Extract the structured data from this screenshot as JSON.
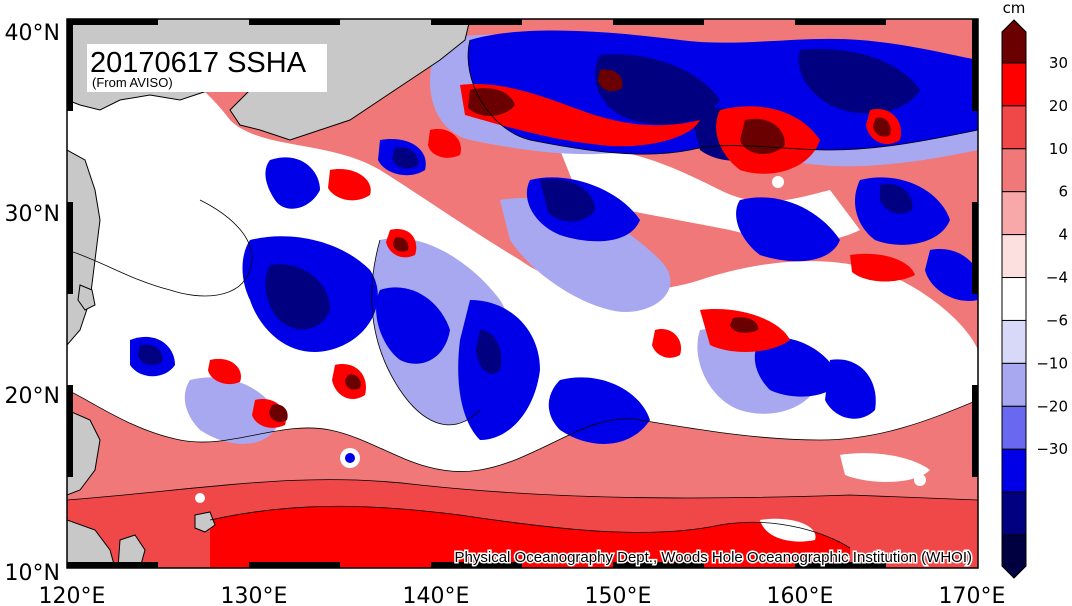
{
  "map": {
    "title": "20170617 SSHA",
    "subtitle": "(From AVISO)",
    "credit": "Physical Oceanography Dept., Woods Hole Oceanographic Institution (WHOI)",
    "lon_range": [
      120,
      170
    ],
    "lat_range": [
      10,
      40
    ],
    "lon_labels": [
      "120°E",
      "130°E",
      "140°E",
      "150°E",
      "160°E",
      "170°E"
    ],
    "lat_labels": [
      "10°N",
      "20°N",
      "30°N",
      "40°N"
    ],
    "land_color": "#c8c8c8"
  },
  "colorbar": {
    "unit": "cm",
    "tick_labels": [
      "30",
      "20",
      "10",
      "6",
      "4",
      "−4",
      "−6",
      "−10",
      "−20",
      "−30"
    ],
    "colors_top_to_bottom": [
      "#6b0000",
      "#ff0000",
      "#f04848",
      "#f07878",
      "#f8a8a8",
      "#fce0e0",
      "#ffffff",
      "#d8d8f8",
      "#a8a8f0",
      "#6868f0",
      "#0000e8",
      "#000080",
      "#000040"
    ]
  }
}
